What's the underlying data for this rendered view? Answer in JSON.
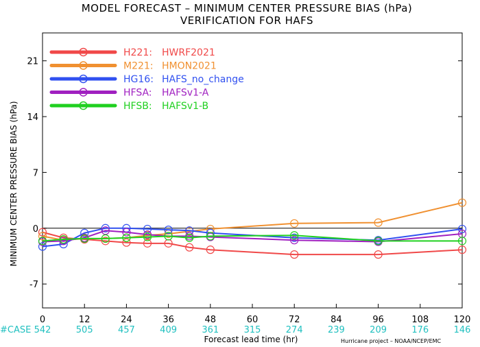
{
  "title_line1": "MODEL FORECAST – MINIMUM CENTER PRESSURE BIAS (hPa)",
  "title_line2": "VERIFICATION FOR HAFS",
  "credit": "Hurricane project – NOAA/NCEP/EMC",
  "case_label": "#CASE",
  "chart_data": {
    "type": "line",
    "xlabel": "Forecast lead time (hr)",
    "ylabel": "MINIMUM CENTER PRESSURE BIAS (hPa)",
    "xlim": [
      0,
      120
    ],
    "ylim": [
      -10,
      24.5
    ],
    "xticks": [
      0,
      12,
      24,
      36,
      48,
      60,
      72,
      84,
      96,
      108,
      120
    ],
    "yticks": [
      -7,
      0,
      7,
      14,
      21
    ],
    "case_counts": [
      542,
      505,
      457,
      409,
      361,
      315,
      274,
      239,
      209,
      176,
      146
    ],
    "legend_placement": "top-left",
    "grid": false,
    "series": [
      {
        "code": "H221:",
        "name": "HWRF2021",
        "color": "#f04848",
        "x": [
          0,
          6,
          12,
          18,
          24,
          30,
          36,
          42,
          48,
          72,
          96,
          120
        ],
        "y": [
          -0.5,
          -1.2,
          -1.4,
          -1.6,
          -1.8,
          -1.9,
          -1.9,
          -2.4,
          -2.7,
          -3.3,
          -3.3,
          -2.7
        ]
      },
      {
        "code": "M221:",
        "name": "HMON2021",
        "color": "#f09030",
        "x": [
          0,
          6,
          12,
          18,
          24,
          30,
          36,
          42,
          48,
          72,
          96,
          120
        ],
        "y": [
          -1.0,
          -1.5,
          -1.3,
          -1.3,
          -1.2,
          -0.9,
          -0.7,
          -0.4,
          -0.1,
          0.6,
          0.7,
          3.2
        ]
      },
      {
        "code": "HG16:",
        "name": "HAFS_no_change",
        "color": "#3050f0",
        "x": [
          0,
          6,
          12,
          18,
          24,
          30,
          36,
          42,
          48,
          72,
          96,
          120
        ],
        "y": [
          -2.3,
          -2.0,
          -0.6,
          0.0,
          0.0,
          -0.1,
          -0.2,
          -0.3,
          -0.6,
          -1.2,
          -1.5,
          -0.1
        ]
      },
      {
        "code": "HFSA:",
        "name": "HAFSv1-A",
        "color": "#a020c0",
        "x": [
          0,
          6,
          12,
          18,
          24,
          30,
          36,
          42,
          48,
          72,
          96,
          120
        ],
        "y": [
          -1.7,
          -1.6,
          -1.2,
          -0.3,
          -0.5,
          -0.8,
          -1.0,
          -1.0,
          -1.1,
          -1.5,
          -1.7,
          -0.7
        ]
      },
      {
        "code": "HFSB:",
        "name": "HAFSv1-B",
        "color": "#20d020",
        "x": [
          0,
          6,
          12,
          18,
          24,
          30,
          36,
          42,
          48,
          72,
          96,
          120
        ],
        "y": [
          -1.6,
          -1.4,
          -1.3,
          -1.3,
          -1.2,
          -1.1,
          -1.0,
          -1.2,
          -1.0,
          -0.9,
          -1.6,
          -1.6
        ]
      }
    ]
  }
}
